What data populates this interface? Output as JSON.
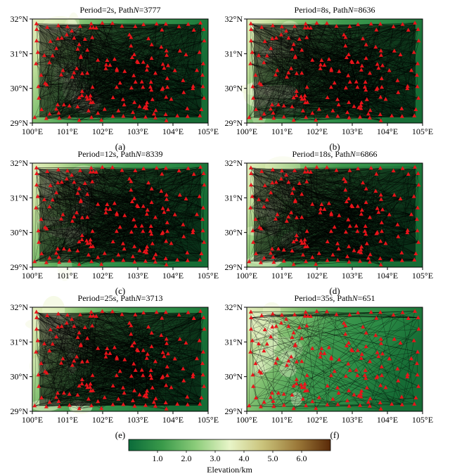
{
  "figure": {
    "panels": [
      {
        "id": "a",
        "title_prefix": "Period=2s, Path",
        "title_n_label": "N",
        "title_eq": "=",
        "path_count": "3777",
        "label": "(a)",
        "path_density": 0.95
      },
      {
        "id": "b",
        "title_prefix": "Period=8s, Path",
        "title_n_label": "N",
        "title_eq": "=",
        "path_count": "8636",
        "label": "(b)",
        "path_density": 1.0
      },
      {
        "id": "c",
        "title_prefix": "Period=12s, Path",
        "title_n_label": "N",
        "title_eq": "=",
        "path_count": "8339",
        "label": "(c)",
        "path_density": 1.0
      },
      {
        "id": "d",
        "title_prefix": "Period=18s, Path",
        "title_n_label": "N",
        "title_eq": "=",
        "path_count": "6866",
        "label": "(d)",
        "path_density": 1.0
      },
      {
        "id": "e",
        "title_prefix": "Period=25s, Path",
        "title_n_label": "N",
        "title_eq": "=",
        "path_count": "3713",
        "label": "(e)",
        "path_density": 0.95
      },
      {
        "id": "f",
        "title_prefix": "Period=35s, Path",
        "title_n_label": "N",
        "title_eq": "=",
        "path_count": "651",
        "label": "(f)",
        "path_density": 0.35
      }
    ],
    "x_ticks": [
      "100°E",
      "101°E",
      "102°E",
      "103°E",
      "104°E",
      "105°E"
    ],
    "y_ticks": [
      "32°N",
      "31°N",
      "30°N",
      "29°N"
    ],
    "colorbar": {
      "ticks": [
        "1.0",
        "2.0",
        "3.0",
        "4.0",
        "5.0",
        "6.0"
      ],
      "label": "Elevation/km",
      "range": [
        0,
        7
      ],
      "colors": [
        "#0b6b3a",
        "#3a9a4a",
        "#8ccc7a",
        "#e8f5c8",
        "#c9c27a",
        "#9c7a3a",
        "#5a2a08"
      ]
    },
    "colors": {
      "station": "#e8141a",
      "path": "#000000",
      "terrain_low": "#1d7a3a",
      "terrain_high": "#d8e8a8"
    }
  },
  "chart_data": {
    "type": "map",
    "description_units": "longitude/latitude degrees",
    "x_range": [
      100,
      105
    ],
    "y_range": [
      29,
      32
    ],
    "series": [
      {
        "name": "Period=2s",
        "path_count": 3777
      },
      {
        "name": "Period=8s",
        "path_count": 8636
      },
      {
        "name": "Period=12s",
        "path_count": 8339
      },
      {
        "name": "Period=18s",
        "path_count": 6866
      },
      {
        "name": "Period=25s",
        "path_count": 3713
      },
      {
        "name": "Period=35s",
        "path_count": 651
      }
    ],
    "colorbar_label": "Elevation/km",
    "colorbar_range": [
      0,
      7
    ]
  }
}
